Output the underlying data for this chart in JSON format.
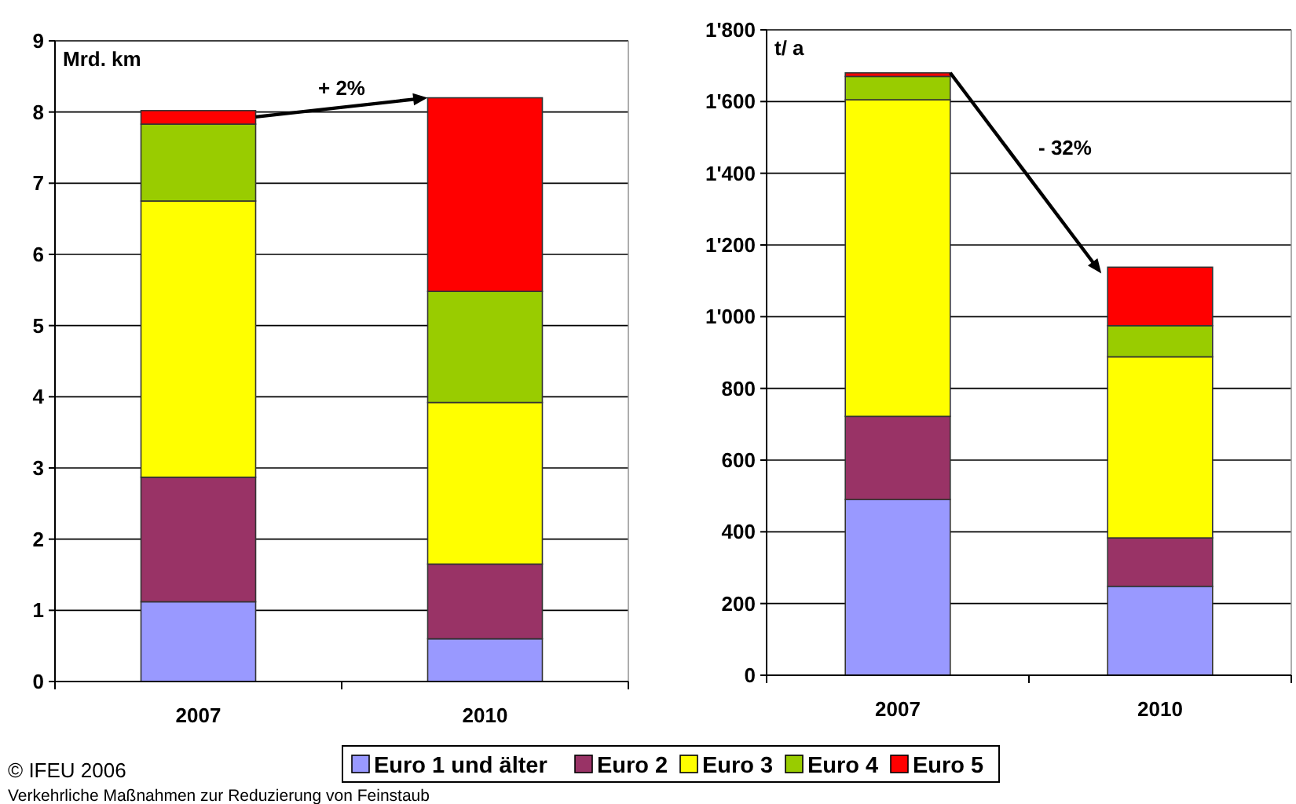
{
  "chart_data": [
    {
      "type": "bar",
      "stacked": true,
      "ylabel": "Mrd. km",
      "categories": [
        "2007",
        "2010"
      ],
      "ylim": [
        0,
        9
      ],
      "yticks": [
        0,
        1,
        2,
        3,
        4,
        5,
        6,
        7,
        8,
        9
      ],
      "grid": "y",
      "legend": "bottom",
      "series": [
        {
          "name": "Euro 1 und älter",
          "color": "#9999ff",
          "values": [
            1.12,
            0.6
          ]
        },
        {
          "name": "Euro 2",
          "color": "#993366",
          "values": [
            1.75,
            1.05
          ]
        },
        {
          "name": "Euro 3",
          "color": "#ffff00",
          "values": [
            3.88,
            2.27
          ]
        },
        {
          "name": "Euro 4",
          "color": "#99cc00",
          "values": [
            1.08,
            1.56
          ]
        },
        {
          "name": "Euro 5",
          "color": "#ff0000",
          "values": [
            0.19,
            2.72
          ]
        }
      ],
      "annotations": [
        "+ 2%",
        "© IFEU 2006",
        "Verkehrliche Maßnahmen zur Reduzierung von Feinstaub"
      ]
    },
    {
      "type": "bar",
      "stacked": true,
      "ylabel": "t/ a",
      "categories": [
        "2007",
        "2010"
      ],
      "ylim": [
        0,
        1800
      ],
      "yticks": [
        0,
        200,
        400,
        600,
        800,
        {
          "value": 1000,
          "label": "1'000"
        },
        {
          "value": 1200,
          "label": "1'200"
        },
        {
          "value": 1400,
          "label": "1'400"
        },
        {
          "value": 1600,
          "label": "1'600"
        },
        {
          "value": 1800,
          "label": "1'800"
        }
      ],
      "grid": "y",
      "series": [
        {
          "color": "#9999ff",
          "values": [
            490,
            248
          ]
        },
        {
          "color": "#993366",
          "values": [
            232,
            135
          ]
        },
        {
          "color": "#ffff00",
          "values": [
            883,
            505
          ]
        },
        {
          "color": "#99cc00",
          "values": [
            65,
            87
          ]
        },
        {
          "color": "#ff0000",
          "values": [
            10,
            163
          ]
        }
      ],
      "annotations": [
        "- 32%"
      ]
    }
  ]
}
